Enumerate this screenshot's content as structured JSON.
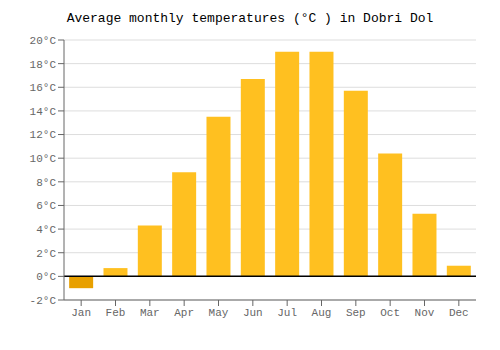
{
  "chart_data": {
    "type": "bar",
    "title": "Average monthly temperatures (°C ) in Dobri Dol",
    "categories": [
      "Jan",
      "Feb",
      "Mar",
      "Apr",
      "May",
      "Jun",
      "Jul",
      "Aug",
      "Sep",
      "Oct",
      "Nov",
      "Dec"
    ],
    "values": [
      -1.0,
      0.7,
      4.3,
      8.8,
      13.5,
      16.7,
      19.0,
      19.0,
      15.7,
      10.4,
      5.3,
      0.9
    ],
    "colors": [
      "#E8A000",
      "#FFC020",
      "#FFC020",
      "#FFC020",
      "#FFC020",
      "#FFC020",
      "#FFC020",
      "#FFC020",
      "#FFC020",
      "#FFC020",
      "#FFC020",
      "#FFC020"
    ],
    "ylim": [
      -2,
      20
    ],
    "yticks": [
      {
        "value": -2,
        "label": "-2°C"
      },
      {
        "value": 0,
        "label": "0°C"
      },
      {
        "value": 2,
        "label": "2°C"
      },
      {
        "value": 4,
        "label": "4°C"
      },
      {
        "value": 6,
        "label": "6°C"
      },
      {
        "value": 8,
        "label": "8°C"
      },
      {
        "value": 10,
        "label": "10°C"
      },
      {
        "value": 12,
        "label": "12°C"
      },
      {
        "value": 14,
        "label": "14°C"
      },
      {
        "value": 16,
        "label": "16°C"
      },
      {
        "value": 18,
        "label": "18°C"
      },
      {
        "value": 20,
        "label": "20°C"
      }
    ],
    "grid": true
  }
}
